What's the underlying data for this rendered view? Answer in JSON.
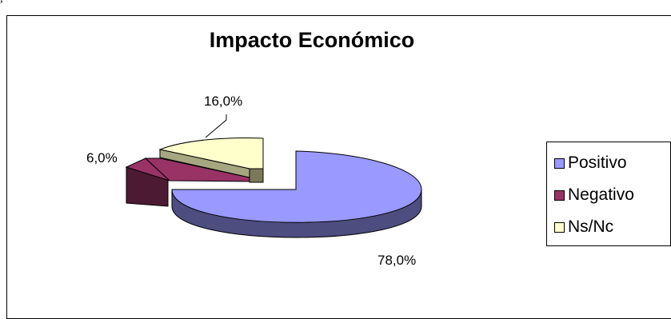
{
  "header": {
    "top_text": ", "
  },
  "chart_data": {
    "type": "pie",
    "title": "Impacto Económico",
    "categories": [
      "Positivo",
      "Negativo",
      "Ns/Nc"
    ],
    "values": [
      78.0,
      6.0,
      16.0
    ],
    "labels": [
      "78,0%",
      "6,0%",
      "16,0%"
    ],
    "colors": [
      "#9999ff",
      "#993366",
      "#ffffcc"
    ],
    "legend_position": "right",
    "style": "3d-exploded"
  }
}
